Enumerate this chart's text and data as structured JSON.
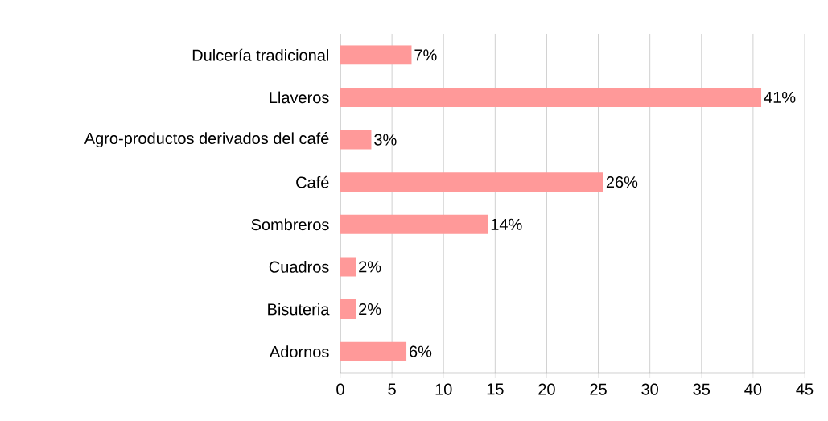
{
  "chart_data": {
    "type": "bar",
    "orientation": "horizontal",
    "categories": [
      "Dulcería tradicional",
      "Llaveros",
      "Agro-productos derivados del café",
      "Café",
      "Sombreros",
      "Cuadros",
      "Bisuteria",
      "Adornos"
    ],
    "values": [
      6.9,
      40.8,
      3.0,
      25.5,
      14.3,
      1.5,
      1.5,
      6.4
    ],
    "value_labels": [
      "7%",
      "41%",
      "3%",
      "26%",
      "14%",
      "2%",
      "2%",
      "6%"
    ],
    "color": "#ff9999",
    "xlim": [
      0,
      45
    ],
    "xticks": [
      0,
      5,
      10,
      15,
      20,
      25,
      30,
      35,
      40,
      45
    ],
    "grid": "x"
  }
}
